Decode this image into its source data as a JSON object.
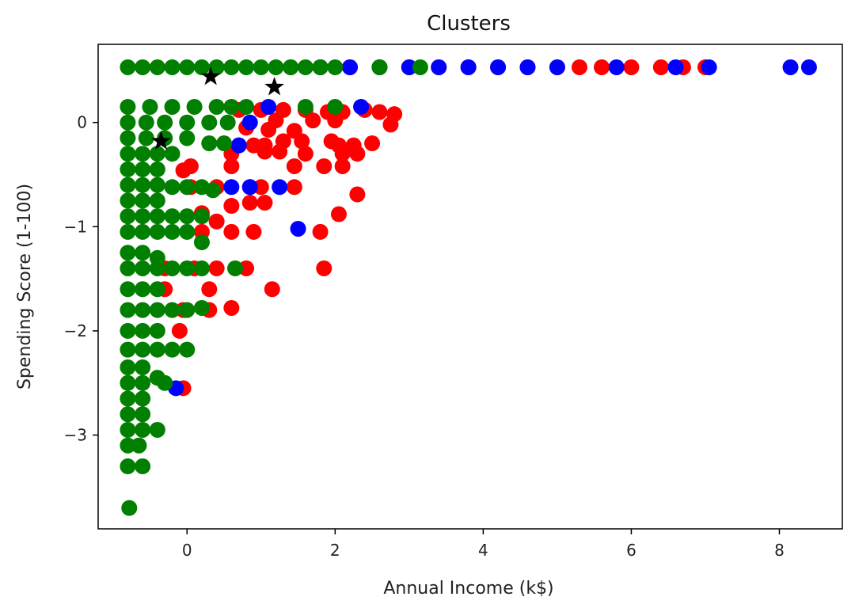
{
  "chart_data": {
    "type": "scatter",
    "title": "Clusters",
    "xlabel": "Annual Income (k$)",
    "ylabel": "Spending Score (1-100)",
    "xlim": [
      -1.2,
      8.85
    ],
    "ylim": [
      -3.9,
      0.75
    ],
    "xticks": [
      0,
      2,
      4,
      6,
      8
    ],
    "yticks": [
      0,
      -1,
      -2,
      -3
    ],
    "grid": false,
    "legend": "none",
    "colors": {
      "red": "#ff0000",
      "blue": "#0000ff",
      "green": "#007f00",
      "star": "#000000"
    },
    "series": [
      {
        "color": "red",
        "points": [
          [
            1.4,
            0.53
          ],
          [
            1.8,
            0.53
          ],
          [
            2.2,
            0.53
          ],
          [
            2.6,
            0.53
          ],
          [
            3.0,
            0.53
          ],
          [
            3.4,
            0.53
          ],
          [
            3.8,
            0.53
          ],
          [
            4.2,
            0.53
          ],
          [
            4.6,
            0.53
          ],
          [
            5.0,
            0.53
          ],
          [
            5.3,
            0.53
          ],
          [
            5.6,
            0.53
          ],
          [
            6.0,
            0.53
          ],
          [
            6.4,
            0.53
          ],
          [
            6.7,
            0.53
          ],
          [
            7.0,
            0.53
          ],
          [
            0.7,
            0.12
          ],
          [
            1.0,
            0.12
          ],
          [
            1.3,
            0.12
          ],
          [
            1.6,
            0.12
          ],
          [
            1.9,
            0.1
          ],
          [
            2.1,
            0.1
          ],
          [
            2.4,
            0.12
          ],
          [
            2.6,
            0.1
          ],
          [
            2.8,
            0.08
          ],
          [
            2.75,
            -0.02
          ],
          [
            1.2,
            0.02
          ],
          [
            1.7,
            0.02
          ],
          [
            2.0,
            0.02
          ],
          [
            1.45,
            -0.08
          ],
          [
            1.1,
            -0.07
          ],
          [
            0.8,
            -0.05
          ],
          [
            0.7,
            -0.22
          ],
          [
            0.9,
            -0.22
          ],
          [
            1.05,
            -0.22
          ],
          [
            1.3,
            -0.18
          ],
          [
            1.55,
            -0.18
          ],
          [
            1.05,
            -0.28
          ],
          [
            1.25,
            -0.28
          ],
          [
            0.6,
            -0.3
          ],
          [
            1.6,
            -0.3
          ],
          [
            1.95,
            -0.18
          ],
          [
            2.05,
            -0.22
          ],
          [
            2.25,
            -0.22
          ],
          [
            2.5,
            -0.2
          ],
          [
            2.3,
            -0.3
          ],
          [
            2.1,
            -0.3
          ],
          [
            0.05,
            -0.42
          ],
          [
            0.6,
            -0.42
          ],
          [
            1.45,
            -0.42
          ],
          [
            1.85,
            -0.42
          ],
          [
            2.1,
            -0.42
          ],
          [
            -0.05,
            -0.46
          ],
          [
            0.05,
            -0.62
          ],
          [
            0.4,
            -0.62
          ],
          [
            0.85,
            -0.62
          ],
          [
            1.0,
            -0.62
          ],
          [
            1.45,
            -0.62
          ],
          [
            2.3,
            -0.69
          ],
          [
            0.2,
            -0.87
          ],
          [
            0.6,
            -0.8
          ],
          [
            0.85,
            -0.77
          ],
          [
            1.05,
            -0.77
          ],
          [
            2.05,
            -0.88
          ],
          [
            0.2,
            -1.05
          ],
          [
            0.6,
            -1.05
          ],
          [
            0.9,
            -1.05
          ],
          [
            0.4,
            -0.95
          ],
          [
            1.8,
            -1.05
          ],
          [
            -0.3,
            -1.4
          ],
          [
            0.1,
            -1.4
          ],
          [
            0.4,
            -1.4
          ],
          [
            0.8,
            -1.4
          ],
          [
            1.85,
            -1.4
          ],
          [
            -0.3,
            -1.6
          ],
          [
            0.3,
            -1.6
          ],
          [
            1.15,
            -1.6
          ],
          [
            -0.05,
            -1.8
          ],
          [
            0.3,
            -1.8
          ],
          [
            0.6,
            -1.78
          ],
          [
            -0.1,
            -2.0
          ],
          [
            -0.05,
            -2.55
          ]
        ]
      },
      {
        "color": "blue",
        "points": [
          [
            1.8,
            0.53
          ],
          [
            2.2,
            0.53
          ],
          [
            2.6,
            0.53
          ],
          [
            3.0,
            0.53
          ],
          [
            3.4,
            0.53
          ],
          [
            3.8,
            0.53
          ],
          [
            4.2,
            0.53
          ],
          [
            4.6,
            0.53
          ],
          [
            5.0,
            0.53
          ],
          [
            5.8,
            0.53
          ],
          [
            6.6,
            0.53
          ],
          [
            7.05,
            0.53
          ],
          [
            8.15,
            0.53
          ],
          [
            8.4,
            0.53
          ],
          [
            1.1,
            0.15
          ],
          [
            2.35,
            0.15
          ],
          [
            0.85,
            0.0
          ],
          [
            0.7,
            -0.22
          ],
          [
            0.6,
            -0.62
          ],
          [
            0.85,
            -0.62
          ],
          [
            1.25,
            -0.62
          ],
          [
            1.5,
            -1.02
          ],
          [
            -0.15,
            -2.55
          ]
        ]
      },
      {
        "color": "green",
        "points": [
          [
            -0.8,
            0.53
          ],
          [
            -0.6,
            0.53
          ],
          [
            -0.4,
            0.53
          ],
          [
            -0.2,
            0.53
          ],
          [
            0.0,
            0.53
          ],
          [
            0.2,
            0.53
          ],
          [
            0.4,
            0.53
          ],
          [
            0.6,
            0.53
          ],
          [
            0.8,
            0.53
          ],
          [
            1.0,
            0.53
          ],
          [
            1.2,
            0.53
          ],
          [
            1.4,
            0.53
          ],
          [
            1.6,
            0.53
          ],
          [
            1.8,
            0.53
          ],
          [
            2.0,
            0.53
          ],
          [
            2.6,
            0.53
          ],
          [
            3.15,
            0.53
          ],
          [
            -0.8,
            0.15
          ],
          [
            -0.5,
            0.15
          ],
          [
            -0.2,
            0.15
          ],
          [
            0.1,
            0.15
          ],
          [
            0.4,
            0.15
          ],
          [
            0.6,
            0.15
          ],
          [
            0.8,
            0.15
          ],
          [
            1.6,
            0.15
          ],
          [
            2.0,
            0.15
          ],
          [
            -0.8,
            0.0
          ],
          [
            -0.55,
            0.0
          ],
          [
            -0.3,
            0.0
          ],
          [
            0.0,
            0.0
          ],
          [
            0.3,
            0.0
          ],
          [
            0.55,
            0.0
          ],
          [
            -0.8,
            -0.15
          ],
          [
            -0.55,
            -0.15
          ],
          [
            -0.3,
            -0.15
          ],
          [
            0.0,
            -0.15
          ],
          [
            0.3,
            -0.2
          ],
          [
            0.5,
            -0.2
          ],
          [
            -0.8,
            -0.3
          ],
          [
            -0.6,
            -0.3
          ],
          [
            -0.4,
            -0.3
          ],
          [
            -0.2,
            -0.3
          ],
          [
            -0.8,
            -0.45
          ],
          [
            -0.6,
            -0.45
          ],
          [
            -0.4,
            -0.45
          ],
          [
            -0.8,
            -0.6
          ],
          [
            -0.6,
            -0.6
          ],
          [
            -0.4,
            -0.6
          ],
          [
            -0.2,
            -0.62
          ],
          [
            0.0,
            -0.62
          ],
          [
            0.2,
            -0.62
          ],
          [
            0.35,
            -0.65
          ],
          [
            -0.8,
            -0.75
          ],
          [
            -0.6,
            -0.75
          ],
          [
            -0.4,
            -0.75
          ],
          [
            -0.8,
            -0.9
          ],
          [
            -0.6,
            -0.9
          ],
          [
            -0.4,
            -0.9
          ],
          [
            -0.2,
            -0.9
          ],
          [
            0.0,
            -0.9
          ],
          [
            0.2,
            -0.9
          ],
          [
            -0.8,
            -1.05
          ],
          [
            -0.6,
            -1.05
          ],
          [
            -0.4,
            -1.05
          ],
          [
            -0.2,
            -1.05
          ],
          [
            0.0,
            -1.05
          ],
          [
            0.2,
            -1.15
          ],
          [
            -0.8,
            -1.25
          ],
          [
            -0.6,
            -1.25
          ],
          [
            -0.4,
            -1.3
          ],
          [
            -0.8,
            -1.4
          ],
          [
            -0.6,
            -1.4
          ],
          [
            -0.4,
            -1.4
          ],
          [
            -0.2,
            -1.4
          ],
          [
            0.0,
            -1.4
          ],
          [
            0.2,
            -1.4
          ],
          [
            0.65,
            -1.4
          ],
          [
            -0.8,
            -1.6
          ],
          [
            -0.6,
            -1.6
          ],
          [
            -0.4,
            -1.6
          ],
          [
            -0.8,
            -1.8
          ],
          [
            -0.6,
            -1.8
          ],
          [
            -0.4,
            -1.8
          ],
          [
            -0.2,
            -1.8
          ],
          [
            0.0,
            -1.8
          ],
          [
            0.2,
            -1.78
          ],
          [
            -0.8,
            -2.0
          ],
          [
            -0.6,
            -2.0
          ],
          [
            -0.4,
            -2.0
          ],
          [
            -0.8,
            -2.18
          ],
          [
            -0.6,
            -2.18
          ],
          [
            -0.4,
            -2.18
          ],
          [
            -0.2,
            -2.18
          ],
          [
            0.0,
            -2.18
          ],
          [
            -0.8,
            -2.35
          ],
          [
            -0.6,
            -2.35
          ],
          [
            -0.8,
            -2.5
          ],
          [
            -0.6,
            -2.5
          ],
          [
            -0.4,
            -2.45
          ],
          [
            -0.3,
            -2.5
          ],
          [
            -0.8,
            -2.65
          ],
          [
            -0.6,
            -2.65
          ],
          [
            -0.8,
            -2.8
          ],
          [
            -0.6,
            -2.8
          ],
          [
            -0.8,
            -2.95
          ],
          [
            -0.6,
            -2.95
          ],
          [
            -0.4,
            -2.95
          ],
          [
            -0.8,
            -3.1
          ],
          [
            -0.65,
            -3.1
          ],
          [
            -0.8,
            -3.3
          ],
          [
            -0.6,
            -3.3
          ],
          [
            -0.78,
            -3.7
          ]
        ]
      }
    ],
    "centroids": [
      [
        0.32,
        0.44
      ],
      [
        1.18,
        0.34
      ],
      [
        -0.35,
        -0.18
      ]
    ]
  }
}
